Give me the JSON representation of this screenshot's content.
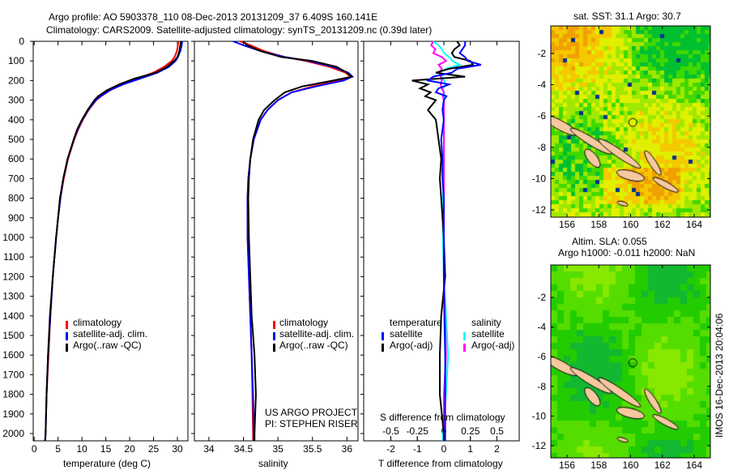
{
  "header": {
    "title_line1": "Argo profile: AO 5903378_110 08-Dec-2013 20131209_37 6.409S 160.141E",
    "title_line2": "Climatology: CARS2009. Satellite-adjusted climatology: synTS_20131209.nc (0.39d later)"
  },
  "colors": {
    "climatology": "#ff0000",
    "satellite": "#0000ff",
    "argo": "#000000",
    "sal_satellite": "#00ffff",
    "sal_argo": "#ff00ff",
    "land": "#f5c8a0"
  },
  "credits": {
    "project": "US ARGO PROJECT",
    "pi": "PI: STEPHEN RISER",
    "stamp": "IMOS 16-Dec-2013 20:04:06"
  },
  "chart_data": [
    {
      "type": "line",
      "title": "",
      "xlabel": "temperature (deg C)",
      "ylabel": "depth",
      "xlim": [
        -0.2,
        32.2
      ],
      "ylim": [
        2044,
        0
      ],
      "xticks": [
        0,
        5,
        10,
        15,
        20,
        25,
        30
      ],
      "yticks": [
        0,
        100,
        200,
        300,
        400,
        500,
        600,
        700,
        800,
        900,
        1000,
        1100,
        1200,
        1300,
        1400,
        1500,
        1600,
        1700,
        1800,
        1900,
        2000
      ],
      "legend": [
        "climatology",
        "satellite-adj. clim.",
        "Argo(..raw -QC)"
      ],
      "legend_position": "lower-center",
      "depth": [
        0,
        20,
        50,
        80,
        100,
        130,
        160,
        190,
        220,
        250,
        280,
        300,
        350,
        400,
        450,
        500,
        600,
        700,
        800,
        900,
        1000,
        1200,
        1400,
        1600,
        1800,
        2000,
        2044
      ],
      "series": [
        {
          "name": "climatology",
          "values": [
            30.2,
            30.1,
            29.9,
            29.4,
            28.8,
            27.2,
            24.9,
            21.6,
            18.4,
            15.9,
            14.0,
            13.0,
            11.4,
            10.2,
            9.2,
            8.4,
            7.1,
            6.2,
            5.5,
            5.0,
            4.6,
            3.9,
            3.4,
            3.0,
            2.6,
            2.4,
            2.3
          ]
        },
        {
          "name": "satellite-adj. clim.",
          "values": [
            31.0,
            30.9,
            30.6,
            30.1,
            29.6,
            28.2,
            25.8,
            22.2,
            18.6,
            15.8,
            13.9,
            12.9,
            11.3,
            10.1,
            9.1,
            8.3,
            7.0,
            6.1,
            5.5,
            5.0,
            4.6,
            3.9,
            3.4,
            2.9,
            2.6,
            2.4,
            2.3
          ]
        },
        {
          "name": "Argo(..raw -QC)",
          "values": [
            30.7,
            30.6,
            30.4,
            30.0,
            29.3,
            27.8,
            25.5,
            21.0,
            17.8,
            15.2,
            13.4,
            12.6,
            11.2,
            10.0,
            9.0,
            8.3,
            7.0,
            6.1,
            5.4,
            5.0,
            4.6,
            3.9,
            3.3,
            2.9,
            2.6,
            2.4,
            2.3
          ]
        }
      ]
    },
    {
      "type": "line",
      "xlabel": "salinity",
      "xlim": [
        33.79,
        36.16
      ],
      "ylim": [
        2044,
        0
      ],
      "xticks": [
        34,
        34.5,
        35,
        35.5,
        36
      ],
      "legend": [
        "climatology",
        "satellite-adj. clim.",
        "Argo(..raw -QC)"
      ],
      "legend_position": "lower-center",
      "depth": [
        0,
        20,
        50,
        80,
        100,
        130,
        160,
        180,
        200,
        230,
        260,
        300,
        350,
        400,
        500,
        600,
        700,
        800,
        1000,
        1200,
        1400,
        1600,
        1800,
        2000,
        2044
      ],
      "series": [
        {
          "name": "climatology",
          "values": [
            34.45,
            34.6,
            34.8,
            35.1,
            35.4,
            35.75,
            35.98,
            36.05,
            35.9,
            35.5,
            35.2,
            35.0,
            34.85,
            34.75,
            34.65,
            34.6,
            34.57,
            34.56,
            34.56,
            34.58,
            34.6,
            34.62,
            34.63,
            34.64,
            34.64
          ]
        },
        {
          "name": "satellite-adj. clim.",
          "values": [
            34.35,
            34.5,
            34.75,
            35.1,
            35.45,
            35.8,
            36.02,
            36.08,
            35.95,
            35.55,
            35.2,
            35.0,
            34.85,
            34.75,
            34.65,
            34.6,
            34.57,
            34.56,
            34.56,
            34.58,
            34.6,
            34.62,
            34.64,
            34.65,
            34.65
          ]
        },
        {
          "name": "Argo(..raw -QC)",
          "values": [
            34.5,
            34.55,
            34.75,
            35.05,
            35.5,
            35.85,
            36.0,
            36.07,
            35.8,
            35.35,
            35.1,
            34.95,
            34.8,
            34.72,
            34.64,
            34.6,
            34.58,
            34.57,
            34.58,
            34.6,
            34.62,
            34.66,
            34.68,
            34.66,
            34.66
          ]
        }
      ]
    },
    {
      "type": "line",
      "xlabel": "T difference from climatology",
      "x2label": "S difference from climatology",
      "xlim": [
        -3.02,
        2.84
      ],
      "ylim": [
        2044,
        0
      ],
      "xticks": [
        -2,
        -1,
        0,
        1,
        2
      ],
      "x2ticks": [
        -0.5,
        -0.25,
        0,
        0.25,
        0.5
      ],
      "x2ticklabels": [
        "-0.5",
        "-0.25",
        "0",
        "0.25",
        "0.5"
      ],
      "legend_temperature_header": "temperature",
      "legend_salinity_header": "salinity",
      "legend": [
        "satellite",
        "Argo(-adj)",
        "satellite",
        "Argo(-adj)"
      ],
      "legend_position": "lower-center",
      "depth": [
        0,
        20,
        40,
        60,
        80,
        100,
        120,
        140,
        160,
        180,
        200,
        220,
        240,
        260,
        280,
        300,
        350,
        400,
        500,
        600,
        700,
        800,
        1000,
        1200,
        1400,
        1600,
        1800,
        2000,
        2044
      ],
      "series": [
        {
          "name": "temperature satellite",
          "values": [
            0.8,
            0.8,
            0.7,
            0.6,
            0.8,
            0.9,
            1.4,
            0.5,
            0.3,
            -0.4,
            -0.6,
            0.2,
            -0.2,
            -0.3,
            0.1,
            0.0,
            -0.05,
            0.0,
            -0.1,
            -0.05,
            -0.05,
            0.0,
            0.0,
            0.0,
            0.02,
            0.05,
            0.05,
            0.05,
            0.05
          ]
        },
        {
          "name": "temperature Argo(-adj)",
          "values": [
            0.5,
            0.6,
            0.4,
            0.3,
            0.4,
            1.0,
            1.1,
            0.2,
            -0.3,
            0.8,
            -1.2,
            -0.6,
            -0.9,
            -0.5,
            -0.7,
            -0.3,
            -0.6,
            -0.3,
            -0.2,
            -0.1,
            -0.15,
            -0.1,
            0.0,
            0.05,
            -0.1,
            -0.15,
            -0.15,
            0.0,
            0.0
          ]
        },
        {
          "name": "salinity satellite",
          "values": [
            -0.1,
            -0.05,
            -0.02,
            0.0,
            0.05,
            0.08,
            0.15,
            0.02,
            -0.05,
            -0.02,
            0.0,
            0.02,
            -0.01,
            0.0,
            0.01,
            0.0,
            0.0,
            0.0,
            0.0,
            0.0,
            0.0,
            -0.01,
            -0.01,
            0.0,
            0.02,
            0.04,
            0.02,
            -0.01,
            -0.01
          ]
        },
        {
          "name": "salinity Argo(-adj)",
          "values": [
            -0.1,
            -0.12,
            -0.08,
            -0.1,
            -0.02,
            0.02,
            -0.05,
            -0.02,
            -0.04,
            -0.03,
            -0.02,
            -0.03,
            -0.02,
            0.0,
            -0.01,
            0.0,
            0.0,
            0.0,
            0.0,
            0.0,
            0.0,
            0.0,
            0.0,
            0.0,
            0.01,
            0.02,
            0.0,
            0.0,
            0.0
          ]
        }
      ]
    },
    {
      "type": "heatmap",
      "title": "sat. SST: 31.1 Argo: 30.7",
      "xlim": [
        155,
        165.3
      ],
      "ylim": [
        -12.4,
        -0.4
      ],
      "xticks": [
        156,
        158,
        160,
        162,
        164
      ],
      "yticks": [
        -2,
        -4,
        -6,
        -8,
        -10,
        -12
      ],
      "argo_position": {
        "lon": 160.141,
        "lat": -6.409
      }
    },
    {
      "type": "heatmap",
      "title": "Altim. SLA: 0.055",
      "subtitle": "Argo h1000: -0.011 h2000: NaN",
      "xlim": [
        155,
        165.3
      ],
      "ylim": [
        -12.4,
        -0.4
      ],
      "xticks": [
        156,
        158,
        160,
        162,
        164
      ],
      "yticks": [
        -2,
        -4,
        -6,
        -8,
        -10,
        -12
      ],
      "argo_position": {
        "lon": 160.141,
        "lat": -6.409
      }
    }
  ]
}
